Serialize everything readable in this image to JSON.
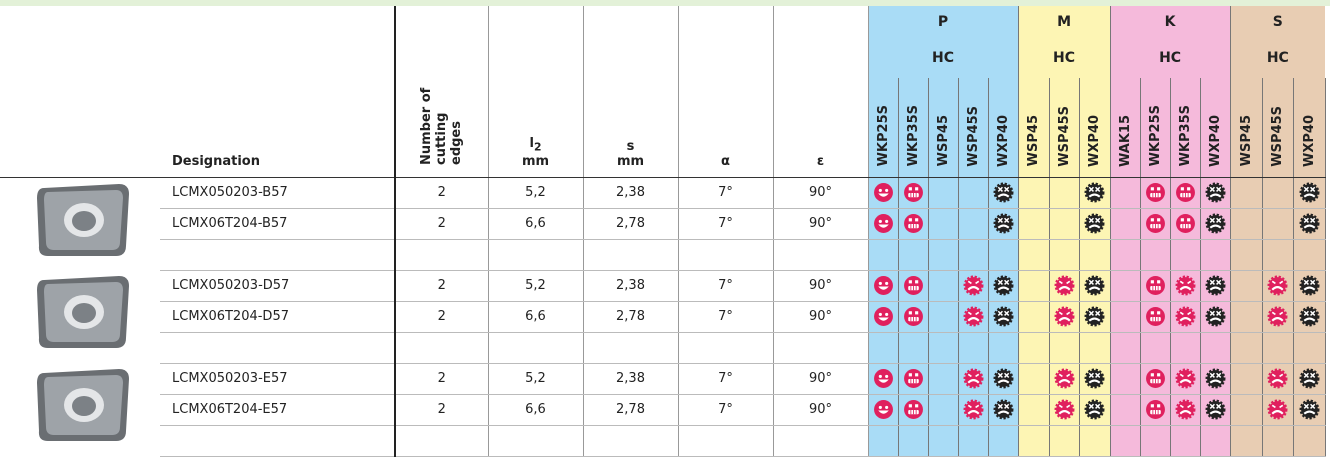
{
  "columns": {
    "designation": "Designation",
    "cutting_edges": "Number of cutting edges",
    "l2": "l",
    "l2_sub": "2",
    "l2_unit": "mm",
    "s": "s",
    "s_unit": "mm",
    "alpha": "α",
    "epsilon": "ε"
  },
  "groups": [
    {
      "name": "P",
      "sub": "HC",
      "grades": [
        "WKP25S",
        "WKP35S",
        "WSP45",
        "WSP45S",
        "WXP40"
      ]
    },
    {
      "name": "M",
      "sub": "HC",
      "grades": [
        "WSP45",
        "WSP45S",
        "WXP40"
      ]
    },
    {
      "name": "K",
      "sub": "HC",
      "grades": [
        "WAK15",
        "WKP25S",
        "WKP35S",
        "WXP40"
      ]
    },
    {
      "name": "S",
      "sub": "HC",
      "grades": [
        "WSP45",
        "WSP45S",
        "WXP40"
      ]
    }
  ],
  "rows": [
    [
      "LCMX050203-B57",
      "2",
      "5,2",
      "2,38",
      "7°",
      "90°"
    ],
    [
      "LCMX06T204-B57",
      "2",
      "6,6",
      "2,78",
      "7°",
      "90°"
    ],
    [
      "LCMX050203-D57",
      "2",
      "5,2",
      "2,38",
      "7°",
      "90°"
    ],
    [
      "LCMX06T204-D57",
      "2",
      "6,6",
      "2,78",
      "7°",
      "90°"
    ],
    [
      "LCMX050203-E57",
      "2",
      "5,2",
      "2,38",
      "7°",
      "90°"
    ],
    [
      "LCMX06T204-E57",
      "2",
      "6,6",
      "2,78",
      "7°",
      "90°"
    ]
  ]
}
